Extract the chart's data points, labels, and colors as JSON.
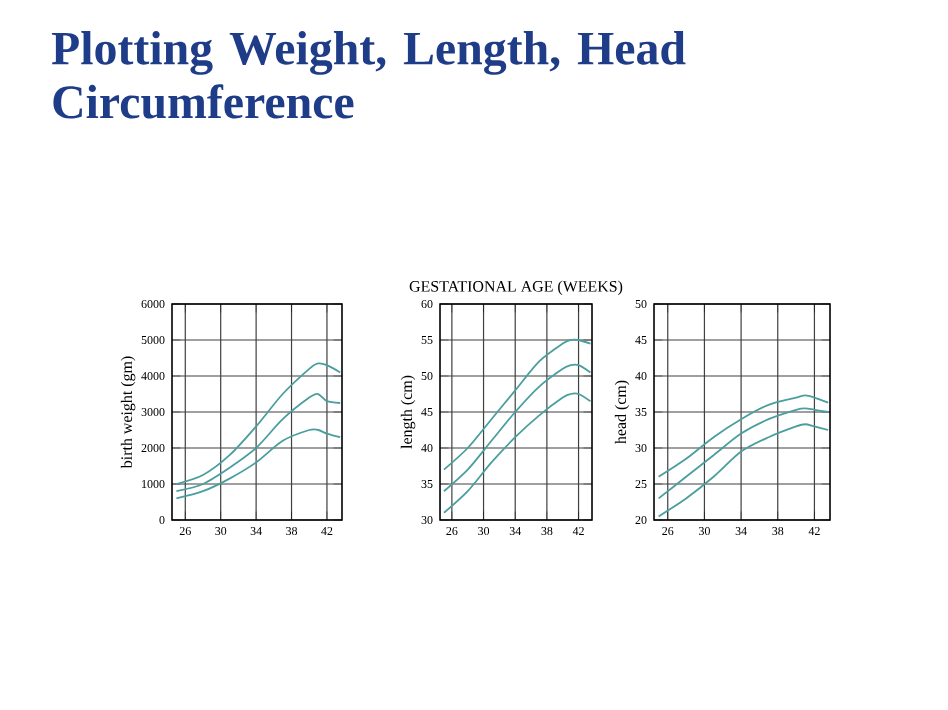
{
  "chart_data": [
    {
      "type": "line",
      "title": "Plotting Weight, Length, Head Circumference",
      "ylabel": "birth weight (gm)",
      "x": [
        25,
        28,
        31,
        34,
        37,
        40,
        41,
        42,
        43.5
      ],
      "xlim": [
        24.5,
        43.7
      ],
      "xticks": [
        26,
        30,
        34,
        38,
        42
      ],
      "ylim": [
        0,
        6000
      ],
      "yticks": [
        0,
        1000,
        2000,
        3000,
        4000,
        5000,
        6000
      ],
      "grid": true,
      "series": [
        {
          "color": "#4a9e9e",
          "values": [
            1000,
            1250,
            1800,
            2600,
            3500,
            4200,
            4350,
            4300,
            4100
          ]
        },
        {
          "color": "#4a9e9e",
          "values": [
            800,
            1000,
            1450,
            2000,
            2800,
            3400,
            3500,
            3300,
            3250
          ]
        },
        {
          "color": "#4a9e9e",
          "values": [
            600,
            800,
            1150,
            1600,
            2200,
            2500,
            2500,
            2400,
            2300
          ]
        }
      ]
    },
    {
      "type": "line",
      "xlabel": "GESTATIONAL AGE (WEEKS)",
      "ylabel": "length (cm)",
      "x": [
        25,
        28,
        31,
        34,
        37,
        40,
        41,
        42,
        43.5
      ],
      "xlim": [
        24.5,
        43.7
      ],
      "xticks": [
        26,
        30,
        34,
        38,
        42
      ],
      "ylim": [
        30,
        60
      ],
      "yticks": [
        30,
        35,
        40,
        45,
        50,
        55,
        60
      ],
      "grid": true,
      "series": [
        {
          "color": "#4a9e9e",
          "values": [
            37,
            40,
            44,
            48,
            52,
            54.5,
            55,
            55,
            54.5
          ]
        },
        {
          "color": "#4a9e9e",
          "values": [
            34,
            37,
            41,
            45,
            48.5,
            51,
            51.5,
            51.5,
            50.5
          ]
        },
        {
          "color": "#4a9e9e",
          "values": [
            31,
            34,
            38,
            41.5,
            44.5,
            47,
            47.5,
            47.5,
            46.5
          ]
        }
      ]
    },
    {
      "type": "line",
      "ylabel": "head (cm)",
      "x": [
        25,
        28,
        31,
        34,
        37,
        40,
        41,
        42,
        43.5
      ],
      "xlim": [
        24.5,
        43.7
      ],
      "xticks": [
        26,
        30,
        34,
        38,
        42
      ],
      "ylim": [
        20,
        50
      ],
      "yticks": [
        20,
        25,
        30,
        35,
        40,
        45,
        50
      ],
      "grid": true,
      "series": [
        {
          "color": "#4a9e9e",
          "values": [
            26,
            28.5,
            31.5,
            34,
            36,
            37,
            37.3,
            37,
            36.3
          ]
        },
        {
          "color": "#4a9e9e",
          "values": [
            23,
            26,
            29,
            32,
            34,
            35.3,
            35.5,
            35.3,
            35
          ]
        },
        {
          "color": "#4a9e9e",
          "values": [
            20.5,
            23,
            26,
            29.5,
            31.5,
            33,
            33.3,
            33,
            32.5
          ]
        }
      ]
    }
  ]
}
